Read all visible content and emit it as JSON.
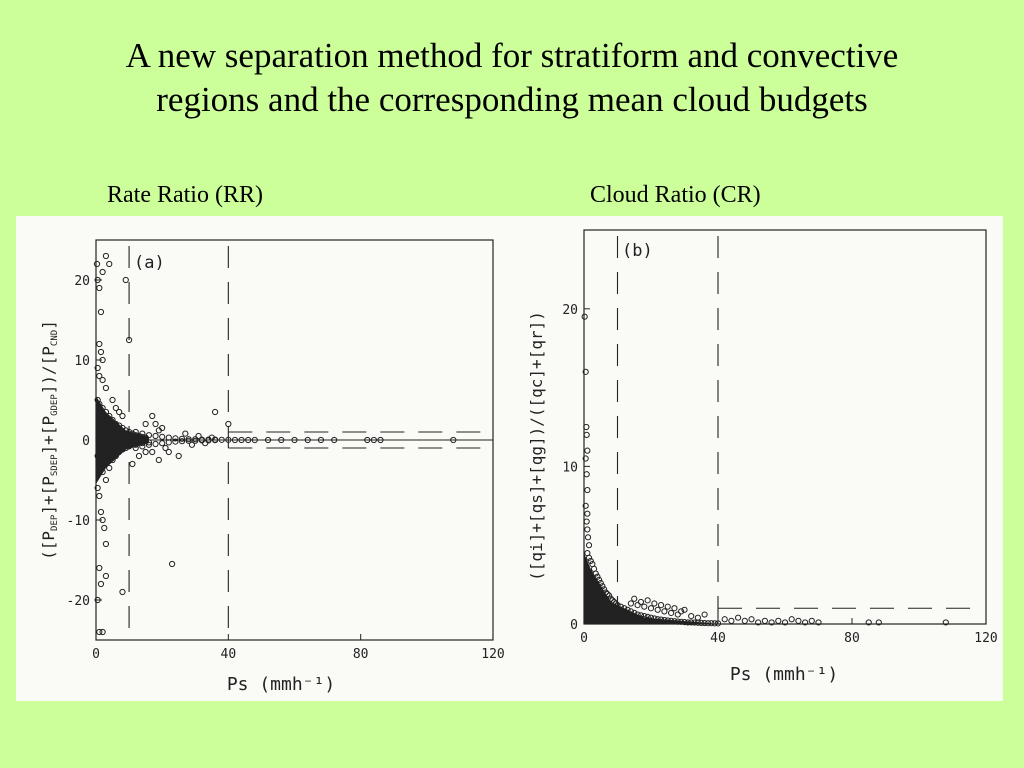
{
  "slide": {
    "title_line1": "A new separation method for stratiform and convective",
    "title_line2": "regions and the corresponding mean cloud budgets",
    "caption_left": "Rate Ratio (RR)",
    "caption_right": "Cloud Ratio (CR)"
  },
  "colors": {
    "background": "#ccff99",
    "scan_paper": "#fafaf6",
    "ink": "#222222"
  },
  "chart_data": [
    {
      "type": "scatter",
      "panel_label": "(a)",
      "xlabel": "Ps (mmh⁻¹)",
      "ylabel": "([P_DEP]+[P_SDEP]+[P_GDEP])/[P_CND]",
      "ylabel_parts": {
        "p1": "([P",
        "s1": "DEP",
        "p2": "]+[P",
        "s2": "SDEP",
        "p3": "]+[P",
        "s3": "GDEP",
        "p4": "])/[P",
        "s4": "CND",
        "p5": "]"
      },
      "xlim": [
        0,
        120
      ],
      "ylim": [
        -25,
        25
      ],
      "x_ticks": [
        "0",
        "40",
        "80",
        "120"
      ],
      "y_ticks": [
        "-20",
        "-10",
        "0",
        "10",
        "20"
      ],
      "x_tick_values": [
        0,
        40,
        80,
        120
      ],
      "y_tick_values": [
        -20,
        -10,
        0,
        10,
        20
      ],
      "vertical_dashed_lines_x": [
        10,
        40
      ],
      "zero_line_y": 0,
      "band_dashes_y": [
        1,
        -1
      ],
      "points": [
        [
          0.3,
          22
        ],
        [
          0.5,
          20
        ],
        [
          1,
          19
        ],
        [
          1.5,
          16
        ],
        [
          2,
          21
        ],
        [
          3,
          23
        ],
        [
          4,
          22
        ],
        [
          1,
          12
        ],
        [
          1.5,
          11
        ],
        [
          2,
          10
        ],
        [
          0.5,
          9
        ],
        [
          1,
          8
        ],
        [
          2,
          7.5
        ],
        [
          3,
          6.5
        ],
        [
          0.5,
          5
        ],
        [
          1,
          4.5
        ],
        [
          2,
          4
        ],
        [
          3,
          3.5
        ],
        [
          4,
          3
        ],
        [
          5,
          2.5
        ],
        [
          6,
          2
        ],
        [
          7,
          1.8
        ],
        [
          8,
          1.5
        ],
        [
          9,
          1.2
        ],
        [
          10,
          1
        ],
        [
          11,
          0.8
        ],
        [
          12,
          0.6
        ],
        [
          13,
          0.5
        ],
        [
          14,
          0.4
        ],
        [
          15,
          0.3
        ],
        [
          0.5,
          -2
        ],
        [
          1,
          -3
        ],
        [
          2,
          -4
        ],
        [
          3,
          -5
        ],
        [
          4,
          -3.5
        ],
        [
          5,
          -2.5
        ],
        [
          6,
          -2
        ],
        [
          7,
          -1.5
        ],
        [
          8,
          -1.2
        ],
        [
          9,
          -1
        ],
        [
          10,
          -0.8
        ],
        [
          12,
          -0.6
        ],
        [
          14,
          -0.4
        ],
        [
          16,
          -0.3
        ],
        [
          0.5,
          -6
        ],
        [
          1,
          -7
        ],
        [
          1.5,
          -9
        ],
        [
          2,
          -10
        ],
        [
          2.5,
          -11
        ],
        [
          3,
          -13
        ],
        [
          1,
          -16
        ],
        [
          1.5,
          -18
        ],
        [
          0.5,
          -20
        ],
        [
          1,
          -24
        ],
        [
          2,
          -24
        ],
        [
          3,
          -17
        ],
        [
          8,
          -19
        ],
        [
          10,
          12.5
        ],
        [
          9,
          20
        ],
        [
          11,
          -3
        ],
        [
          5,
          5
        ],
        [
          6,
          4
        ],
        [
          7,
          3.5
        ],
        [
          8,
          3
        ],
        [
          12,
          1
        ],
        [
          14,
          0.8
        ],
        [
          16,
          0.6
        ],
        [
          18,
          0.5
        ],
        [
          20,
          0.4
        ],
        [
          22,
          0.3
        ],
        [
          24,
          0.2
        ],
        [
          26,
          0.15
        ],
        [
          28,
          0.1
        ],
        [
          30,
          0.1
        ],
        [
          32,
          0.05
        ],
        [
          34,
          0.05
        ],
        [
          36,
          0.05
        ],
        [
          38,
          0.02
        ],
        [
          40,
          0.02
        ],
        [
          12,
          -1
        ],
        [
          14,
          -0.8
        ],
        [
          16,
          -0.6
        ],
        [
          18,
          -0.5
        ],
        [
          20,
          -0.4
        ],
        [
          22,
          -0.3
        ],
        [
          24,
          -0.2
        ],
        [
          26,
          -0.15
        ],
        [
          28,
          -0.1
        ],
        [
          30,
          -0.1
        ],
        [
          32,
          -0.05
        ],
        [
          34,
          -0.05
        ],
        [
          36,
          -0.02
        ],
        [
          15,
          2
        ],
        [
          18,
          2
        ],
        [
          22,
          -1.5
        ],
        [
          25,
          -2
        ],
        [
          19,
          -2.5
        ],
        [
          23,
          -15.5
        ],
        [
          17,
          3
        ],
        [
          20,
          1.5
        ],
        [
          36,
          3.5
        ],
        [
          40,
          2
        ],
        [
          42,
          0
        ],
        [
          44,
          0
        ],
        [
          46,
          0
        ],
        [
          48,
          0
        ],
        [
          52,
          0
        ],
        [
          56,
          0
        ],
        [
          60,
          0
        ],
        [
          64,
          0
        ],
        [
          68,
          0
        ],
        [
          72,
          0
        ],
        [
          82,
          0
        ],
        [
          84,
          0
        ],
        [
          86,
          0
        ],
        [
          108,
          0
        ],
        [
          1,
          0.5
        ],
        [
          1.5,
          -0.5
        ],
        [
          2,
          1
        ],
        [
          2.5,
          -1
        ],
        [
          3,
          1.5
        ],
        [
          3.5,
          -1.5
        ],
        [
          4,
          2
        ],
        [
          4.5,
          -2
        ],
        [
          5,
          1
        ],
        [
          5.5,
          -1
        ],
        [
          6,
          0.5
        ],
        [
          6.5,
          -0.5
        ],
        [
          7,
          0.3
        ],
        [
          7.5,
          -0.3
        ],
        [
          1,
          2.5
        ],
        [
          1.5,
          -2.5
        ],
        [
          2,
          3
        ],
        [
          2.5,
          -3
        ],
        [
          3,
          2
        ],
        [
          3.5,
          -2
        ],
        [
          4,
          1.2
        ],
        [
          4.5,
          -1.2
        ],
        [
          5,
          0.8
        ],
        [
          5.5,
          -0.8
        ],
        [
          13,
          -2
        ],
        [
          15,
          -1.5
        ],
        [
          17,
          -1.5
        ],
        [
          19,
          1.2
        ],
        [
          21,
          -1
        ],
        [
          27,
          0.8
        ],
        [
          29,
          -0.6
        ],
        [
          31,
          0.5
        ],
        [
          33,
          -0.4
        ],
        [
          35,
          0.3
        ]
      ]
    },
    {
      "type": "scatter",
      "panel_label": "(b)",
      "xlabel": "Ps (mmh⁻¹)",
      "ylabel": "([qi]+[qs]+[qg])/([qc]+[qr])",
      "xlim": [
        0,
        120
      ],
      "ylim": [
        0,
        25
      ],
      "x_ticks": [
        "0",
        "40",
        "80",
        "120"
      ],
      "y_ticks": [
        "0",
        "10",
        "20"
      ],
      "x_tick_values": [
        0,
        40,
        80,
        120
      ],
      "y_tick_values": [
        0,
        10,
        20
      ],
      "vertical_dashed_lines_x": [
        10,
        40
      ],
      "band_dash_y": 1,
      "points": [
        [
          0.2,
          19.5
        ],
        [
          0.5,
          16
        ],
        [
          0.7,
          12.5
        ],
        [
          0.8,
          12
        ],
        [
          1,
          11
        ],
        [
          0.5,
          10.5
        ],
        [
          0.8,
          9.5
        ],
        [
          1,
          8.5
        ],
        [
          0.5,
          7.5
        ],
        [
          1,
          7
        ],
        [
          0.8,
          6.5
        ],
        [
          1,
          6
        ],
        [
          1.2,
          5.5
        ],
        [
          1.5,
          5
        ],
        [
          1,
          4.5
        ],
        [
          1.5,
          4.2
        ],
        [
          2,
          4
        ],
        [
          2.5,
          3.8
        ],
        [
          3,
          3.5
        ],
        [
          3.5,
          3.2
        ],
        [
          4,
          3
        ],
        [
          4.5,
          2.8
        ],
        [
          5,
          2.6
        ],
        [
          5.5,
          2.4
        ],
        [
          6,
          2.2
        ],
        [
          6.5,
          2
        ],
        [
          7,
          1.9
        ],
        [
          7.5,
          1.8
        ],
        [
          8,
          1.6
        ],
        [
          8.5,
          1.5
        ],
        [
          9,
          1.4
        ],
        [
          9.5,
          1.3
        ],
        [
          10,
          1.2
        ],
        [
          11,
          1.1
        ],
        [
          12,
          1
        ],
        [
          13,
          0.9
        ],
        [
          14,
          0.8
        ],
        [
          15,
          0.7
        ],
        [
          16,
          0.6
        ],
        [
          17,
          0.55
        ],
        [
          18,
          0.5
        ],
        [
          19,
          0.45
        ],
        [
          20,
          0.4
        ],
        [
          21,
          0.35
        ],
        [
          22,
          0.3
        ],
        [
          23,
          0.28
        ],
        [
          24,
          0.25
        ],
        [
          25,
          0.22
        ],
        [
          26,
          0.2
        ],
        [
          27,
          0.18
        ],
        [
          28,
          0.15
        ],
        [
          29,
          0.14
        ],
        [
          30,
          0.12
        ],
        [
          31,
          0.1
        ],
        [
          32,
          0.1
        ],
        [
          33,
          0.09
        ],
        [
          34,
          0.08
        ],
        [
          35,
          0.07
        ],
        [
          36,
          0.06
        ],
        [
          37,
          0.05
        ],
        [
          38,
          0.05
        ],
        [
          39,
          0.04
        ],
        [
          40,
          0.04
        ],
        [
          42,
          0.3
        ],
        [
          44,
          0.2
        ],
        [
          46,
          0.4
        ],
        [
          48,
          0.2
        ],
        [
          50,
          0.3
        ],
        [
          52,
          0.1
        ],
        [
          54,
          0.2
        ],
        [
          56,
          0.1
        ],
        [
          58,
          0.2
        ],
        [
          60,
          0.1
        ],
        [
          62,
          0.3
        ],
        [
          64,
          0.2
        ],
        [
          66,
          0.1
        ],
        [
          68,
          0.2
        ],
        [
          70,
          0.1
        ],
        [
          85,
          0.1
        ],
        [
          88,
          0.1
        ],
        [
          108,
          0.1
        ],
        [
          2,
          3
        ],
        [
          3,
          2.5
        ],
        [
          4,
          2
        ],
        [
          5,
          1.8
        ],
        [
          6,
          1.5
        ],
        [
          7,
          1.3
        ],
        [
          8,
          1.1
        ],
        [
          9,
          1
        ],
        [
          10,
          0.9
        ],
        [
          11,
          0.8
        ],
        [
          12,
          0.7
        ],
        [
          13,
          0.6
        ],
        [
          14,
          0.5
        ],
        [
          15,
          0.45
        ],
        [
          16,
          0.4
        ],
        [
          17,
          0.35
        ],
        [
          18,
          0.3
        ],
        [
          19,
          0.25
        ],
        [
          20,
          0.2
        ],
        [
          1,
          3
        ],
        [
          2,
          2
        ],
        [
          3,
          1.5
        ],
        [
          4,
          1.2
        ],
        [
          5,
          1
        ],
        [
          6,
          0.8
        ],
        [
          7,
          0.6
        ],
        [
          8,
          0.5
        ],
        [
          9,
          0.4
        ],
        [
          10,
          0.3
        ],
        [
          14,
          1.3
        ],
        [
          16,
          1.2
        ],
        [
          18,
          1.1
        ],
        [
          20,
          1
        ],
        [
          22,
          0.9
        ],
        [
          24,
          0.8
        ],
        [
          26,
          0.7
        ],
        [
          28,
          0.6
        ],
        [
          30,
          0.9
        ],
        [
          32,
          0.5
        ],
        [
          34,
          0.4
        ],
        [
          36,
          0.6
        ],
        [
          15,
          1.6
        ],
        [
          17,
          1.4
        ],
        [
          19,
          1.5
        ],
        [
          21,
          1.3
        ],
        [
          23,
          1.2
        ],
        [
          25,
          1.1
        ],
        [
          27,
          1
        ],
        [
          29,
          0.8
        ]
      ]
    }
  ]
}
